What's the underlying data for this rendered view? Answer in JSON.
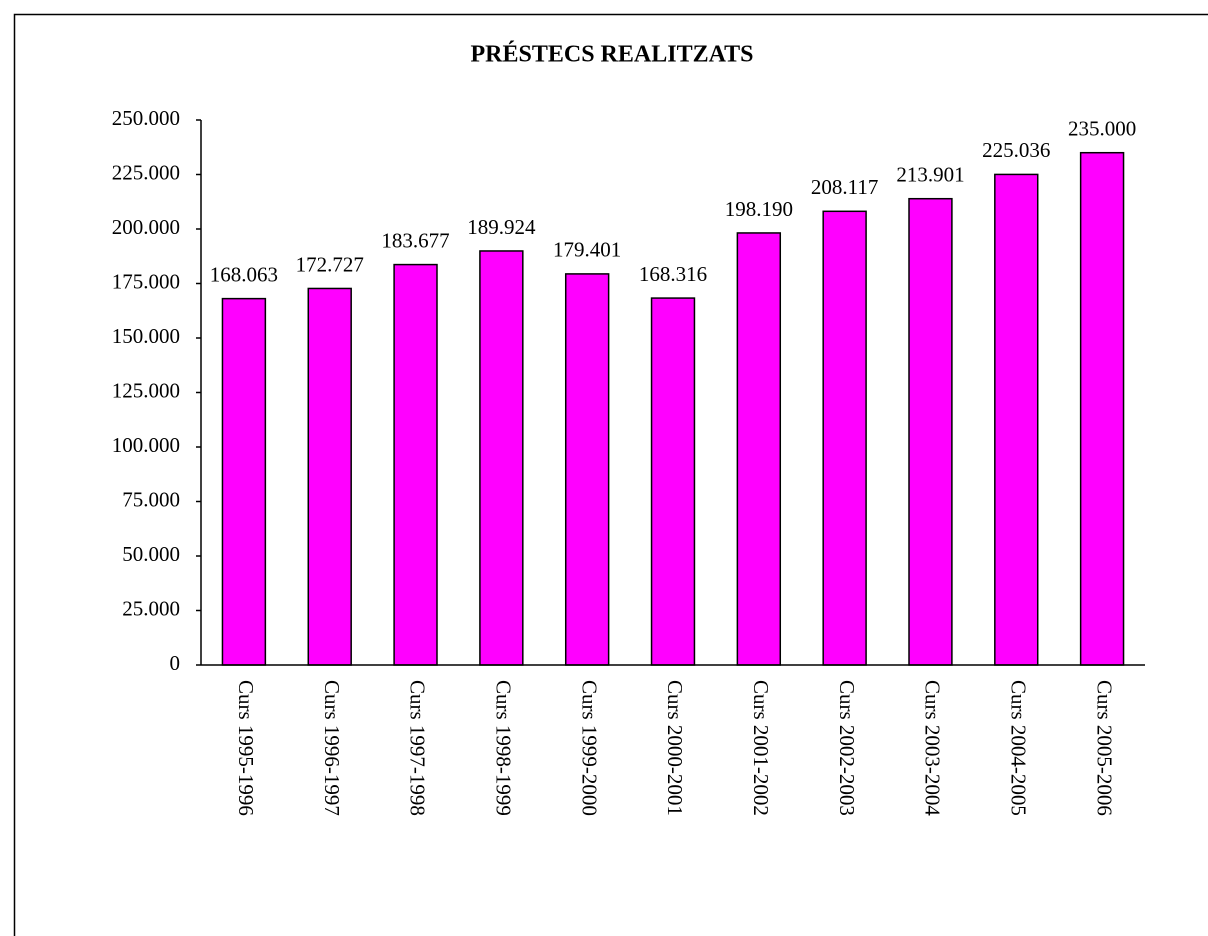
{
  "chart_data": {
    "type": "bar",
    "title": "PRÉSTECS REALITZATS",
    "categories": [
      "Curs 1995-1996",
      "Curs 1996-1997",
      "Curs 1997-1998",
      "Curs 1998-1999",
      "Curs 1999-2000",
      "Curs 2000-2001",
      "Curs 2001-2002",
      "Curs 2002-2003",
      "Curs 2003-2004",
      "Curs 2004-2005",
      "Curs 2005-2006"
    ],
    "values": [
      168063,
      172727,
      183677,
      189924,
      179401,
      168316,
      198190,
      208117,
      213901,
      225036,
      235000
    ],
    "value_labels": [
      "168.063",
      "172.727",
      "183.677",
      "189.924",
      "179.401",
      "168.316",
      "198.190",
      "208.117",
      "213.901",
      "225.036",
      "235.000"
    ],
    "color": "#ff00ff",
    "ylim": [
      0,
      250000
    ],
    "yticks": [
      0,
      {
        "value": 25000,
        "label": "25.000"
      },
      {
        "value": 50000,
        "label": "50.000"
      },
      {
        "value": 75000,
        "label": "75.000"
      },
      {
        "value": 100000,
        "label": "100.000"
      },
      {
        "value": 125000,
        "label": "125.000"
      },
      {
        "value": 150000,
        "label": "150.000"
      },
      {
        "value": 175000,
        "label": "175.000"
      },
      {
        "value": 200000,
        "label": "200.000"
      },
      {
        "value": 225000,
        "label": "225.000"
      },
      {
        "value": 250000,
        "label": "250.000"
      }
    ],
    "grid": false
  }
}
